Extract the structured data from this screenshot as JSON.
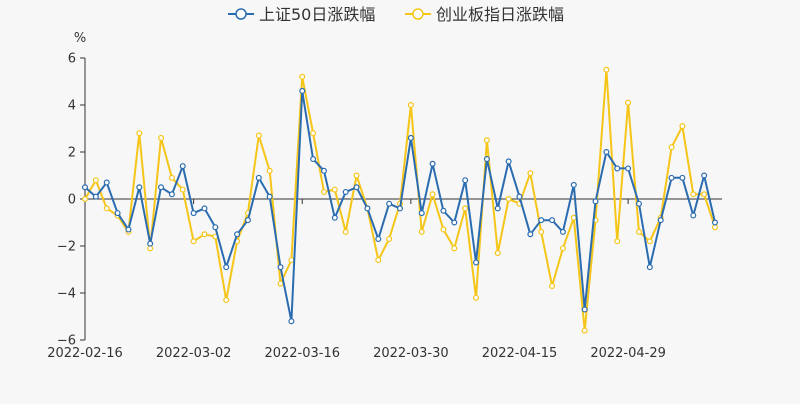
{
  "chart_data": {
    "type": "line",
    "unit_label": "%",
    "ylim": [
      -6,
      6
    ],
    "yticks": [
      -6,
      -4,
      -2,
      0,
      2,
      4,
      6
    ],
    "x_tick_labels": [
      {
        "index": 0,
        "label": "2022-02-16"
      },
      {
        "index": 10,
        "label": "2022-03-02"
      },
      {
        "index": 20,
        "label": "2022-03-16"
      },
      {
        "index": 30,
        "label": "2022-03-30"
      },
      {
        "index": 40,
        "label": "2022-04-15"
      },
      {
        "index": 50,
        "label": "2022-04-29"
      }
    ],
    "legend_position": "top-center",
    "grid": false,
    "series": [
      {
        "name": "上证50日涨跌幅",
        "color": "#2b6cb0",
        "values": [
          0.5,
          0.1,
          0.7,
          -0.6,
          -1.3,
          0.5,
          -1.9,
          0.5,
          0.2,
          1.4,
          -0.6,
          -0.4,
          -1.2,
          -2.9,
          -1.5,
          -0.9,
          0.9,
          0.1,
          -2.9,
          -5.2,
          4.6,
          1.7,
          1.2,
          -0.8,
          0.3,
          0.5,
          -0.4,
          -1.7,
          -0.2,
          -0.4,
          2.6,
          -0.6,
          1.5,
          -0.5,
          -1.0,
          0.8,
          -2.7,
          1.7,
          -0.4,
          1.6,
          0.1,
          -1.5,
          -0.9,
          -0.9,
          -1.4,
          0.6,
          -4.7,
          -0.1,
          2.0,
          1.3,
          1.3,
          -0.2,
          -2.9,
          -0.9,
          0.9,
          0.9,
          -0.7,
          1.0,
          -1.0
        ]
      },
      {
        "name": "创业板指日涨跌幅",
        "color": "#f5c518",
        "values": [
          0.0,
          0.8,
          -0.4,
          -0.7,
          -1.4,
          2.8,
          -2.1,
          2.6,
          0.9,
          0.4,
          -1.8,
          -1.5,
          -1.6,
          -4.3,
          -1.8,
          -0.6,
          2.7,
          1.2,
          -3.6,
          -2.6,
          5.2,
          2.8,
          0.3,
          0.4,
          -1.4,
          1.0,
          -0.4,
          -2.6,
          -1.7,
          -0.2,
          4.0,
          -1.4,
          0.2,
          -1.3,
          -2.1,
          -0.4,
          -4.2,
          2.5,
          -2.3,
          0.0,
          -0.2,
          1.1,
          -1.4,
          -3.7,
          -2.1,
          -0.8,
          -5.6,
          -0.9,
          5.5,
          -1.8,
          4.1,
          -1.4,
          -1.8,
          -0.8,
          2.2,
          3.1,
          0.2,
          0.2,
          -1.2
        ]
      }
    ]
  }
}
